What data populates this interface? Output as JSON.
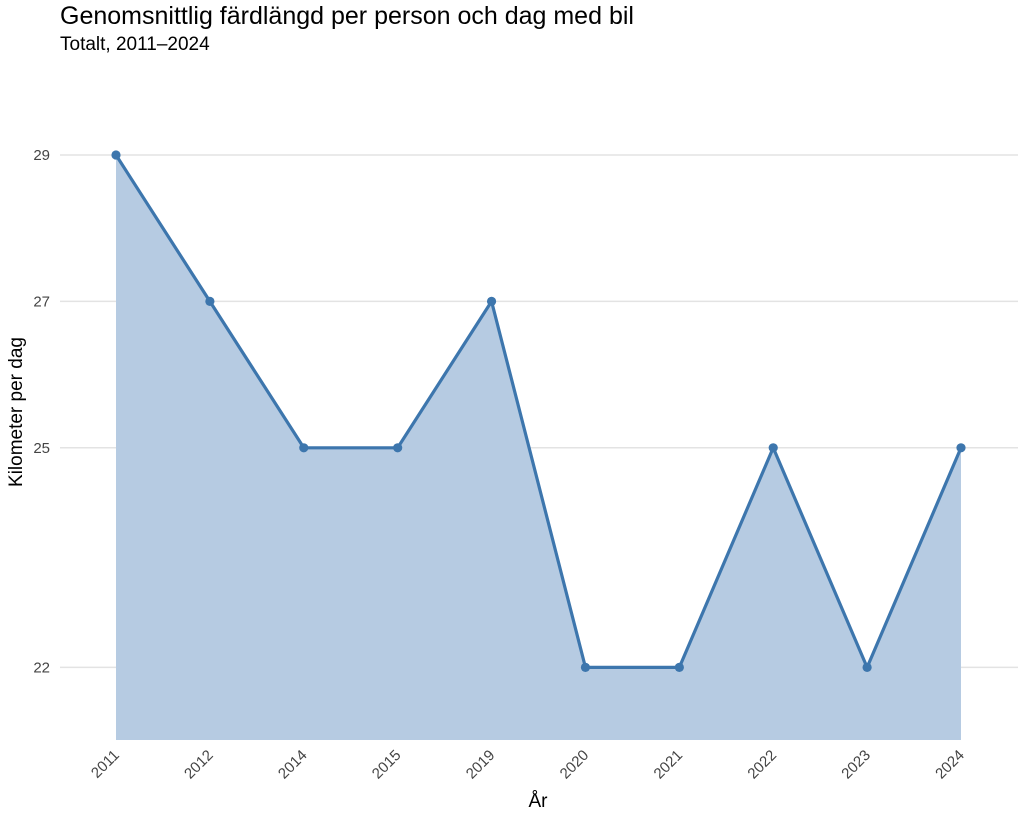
{
  "chart_data": {
    "type": "area",
    "title": "Genomsnittlig färdlängd per person och dag med bil",
    "subtitle": "Totalt, 2011–2024",
    "xlabel": "År",
    "ylabel": "Kilometer per dag",
    "categories": [
      "2011",
      "2012",
      "2014",
      "2015",
      "2019",
      "2020",
      "2021",
      "2022",
      "2023",
      "2024"
    ],
    "values": [
      29,
      27,
      25,
      25,
      27,
      22,
      22,
      25,
      22,
      25
    ],
    "y_ticks": [
      22,
      25,
      27,
      29
    ],
    "grid": true,
    "legend": "none",
    "colors": {
      "line": "#3d76ad",
      "fill": "#b6cbe2",
      "grid": "#e3e3e3"
    }
  }
}
